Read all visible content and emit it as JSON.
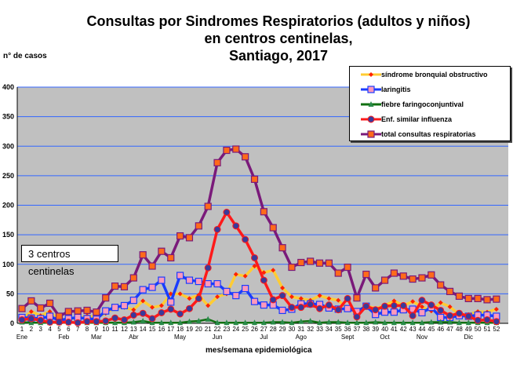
{
  "chart_data": {
    "type": "line",
    "title": [
      "Consultas por Sindromes Respiratorios (adultos y niños)",
      "en centros centinelas,",
      "Santiago, 2017"
    ],
    "ylabel": "n° de casos",
    "xlabel": "mes/semana epidemiológica",
    "ylim": [
      0,
      400
    ],
    "yticks": [
      0,
      50,
      100,
      150,
      200,
      250,
      300,
      350,
      400
    ],
    "x": [
      1,
      2,
      3,
      4,
      5,
      6,
      7,
      8,
      9,
      10,
      11,
      12,
      13,
      14,
      15,
      16,
      17,
      18,
      19,
      20,
      21,
      22,
      23,
      24,
      25,
      26,
      27,
      28,
      29,
      30,
      31,
      32,
      33,
      34,
      35,
      36,
      37,
      38,
      39,
      40,
      41,
      42,
      43,
      44,
      45,
      46,
      47,
      48,
      49,
      50,
      51,
      52
    ],
    "months": [
      {
        "label": "Ene",
        "week": 1
      },
      {
        "label": "Feb",
        "week": 5.5
      },
      {
        "label": "Mar",
        "week": 9
      },
      {
        "label": "Abr",
        "week": 13
      },
      {
        "label": "May",
        "week": 18
      },
      {
        "label": "Jun",
        "week": 22
      },
      {
        "label": "Jul",
        "week": 27
      },
      {
        "label": "Ago",
        "week": 31
      },
      {
        "label": "Sept",
        "week": 36
      },
      {
        "label": "Oct",
        "week": 40
      },
      {
        "label": "Nov",
        "week": 44
      },
      {
        "label": "Dic",
        "week": 49
      }
    ],
    "annotation": "3 centros centinelas",
    "legend_position": "top-right",
    "grid": true,
    "series": [
      {
        "name": "síndrome bronquial obstructivo",
        "color": "#ffcc33",
        "marker": "diamond",
        "marker_color": "#ff2200",
        "values": [
          7,
          20,
          13,
          20,
          5,
          8,
          8,
          13,
          10,
          17,
          27,
          27,
          23,
          38,
          27,
          30,
          50,
          50,
          42,
          48,
          30,
          45,
          50,
          83,
          80,
          97,
          86,
          90,
          60,
          45,
          42,
          39,
          47,
          42,
          39,
          25,
          20,
          30,
          25,
          30,
          38,
          30,
          37,
          28,
          21,
          35,
          28,
          15,
          15,
          20,
          19,
          24
        ]
      },
      {
        "name": "laringitis",
        "color": "#1a3cff",
        "marker": "square",
        "marker_color": "#ff99bb",
        "values": [
          10,
          9,
          8,
          12,
          5,
          8,
          10,
          8,
          7,
          21,
          27,
          30,
          39,
          57,
          61,
          73,
          36,
          81,
          73,
          71,
          67,
          67,
          54,
          47,
          59,
          37,
          31,
          31,
          22,
          24,
          33,
          33,
          32,
          26,
          24,
          25,
          20,
          29,
          15,
          19,
          19,
          23,
          24,
          18,
          27,
          10,
          10,
          13,
          12,
          14,
          14,
          12
        ]
      },
      {
        "name": "fiebre faringoconjuntival",
        "color": "#107010",
        "marker": "triangle",
        "marker_color": "#2a8a4a",
        "values": [
          2,
          1,
          1,
          1,
          1,
          1,
          1,
          1,
          1,
          1,
          1,
          1,
          2,
          4,
          1,
          1,
          1,
          1,
          3,
          4,
          7,
          1,
          1,
          1,
          1,
          1,
          1,
          2,
          2,
          1,
          3,
          4,
          1,
          2,
          2,
          1,
          1,
          1,
          2,
          1,
          1,
          1,
          1,
          1,
          2,
          2,
          2,
          1,
          1,
          1,
          1,
          1
        ]
      },
      {
        "name": "Enf. similar influenza",
        "color": "#ff1a1a",
        "marker": "circle",
        "marker_color": "#3a3a9a",
        "values": [
          6,
          8,
          5,
          2,
          2,
          2,
          1,
          3,
          3,
          4,
          9,
          6,
          14,
          17,
          8,
          18,
          24,
          16,
          25,
          42,
          94,
          159,
          188,
          165,
          142,
          111,
          73,
          40,
          47,
          27,
          27,
          32,
          25,
          31,
          23,
          42,
          11,
          29,
          23,
          29,
          30,
          30,
          13,
          39,
          31,
          22,
          13,
          17,
          12,
          5,
          6,
          3
        ]
      },
      {
        "name": "total consultas respiratorias",
        "color": "#7a1a7a",
        "marker": "square",
        "marker_color": "#ff6a1a",
        "values": [
          25,
          38,
          26,
          34,
          12,
          20,
          21,
          22,
          19,
          43,
          63,
          62,
          77,
          116,
          97,
          122,
          111,
          148,
          145,
          165,
          198,
          272,
          293,
          295,
          282,
          244,
          189,
          162,
          128,
          95,
          103,
          105,
          102,
          102,
          85,
          95,
          43,
          83,
          60,
          73,
          85,
          80,
          75,
          77,
          82,
          65,
          54,
          46,
          42,
          42,
          40,
          41
        ]
      }
    ]
  }
}
